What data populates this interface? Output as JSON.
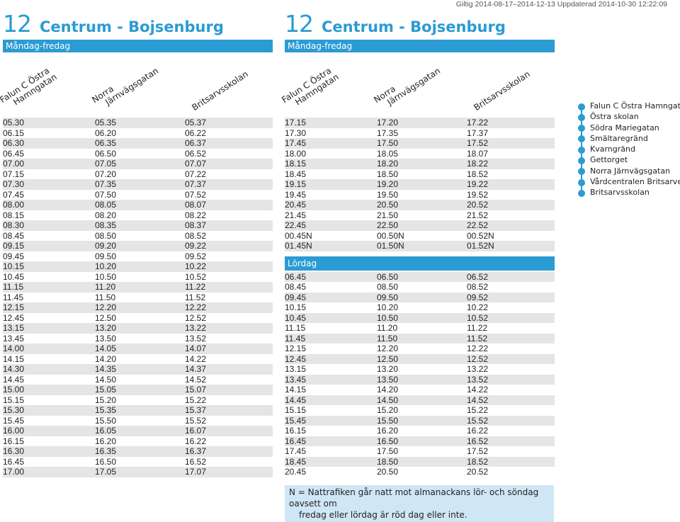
{
  "validity": "Giltig 2014-08-17–2014-12-13 Uppdaterad 2014-10-30 12:22:09",
  "left": {
    "route_number": "12",
    "route_name": "Centrum - Bojsenburg",
    "day": "Måndag-fredag",
    "headers": [
      [
        "Falun C Östra",
        "Hamngatan"
      ],
      [
        "Norra",
        "Järnvägsgatan"
      ],
      [
        "Britsarvsskolan"
      ]
    ],
    "rows": [
      [
        "05.30",
        "05.35",
        "05.37"
      ],
      [
        "06.15",
        "06.20",
        "06.22"
      ],
      [
        "06.30",
        "06.35",
        "06.37"
      ],
      [
        "06.45",
        "06.50",
        "06.52"
      ],
      [
        "07.00",
        "07.05",
        "07.07"
      ],
      [
        "07.15",
        "07.20",
        "07.22"
      ],
      [
        "07.30",
        "07.35",
        "07.37"
      ],
      [
        "07.45",
        "07.50",
        "07.52"
      ],
      [
        "08.00",
        "08.05",
        "08.07"
      ],
      [
        "08.15",
        "08.20",
        "08.22"
      ],
      [
        "08.30",
        "08.35",
        "08.37"
      ],
      [
        "08.45",
        "08.50",
        "08.52"
      ],
      [
        "09.15",
        "09.20",
        "09.22"
      ],
      [
        "09.45",
        "09.50",
        "09.52"
      ],
      [
        "10.15",
        "10.20",
        "10.22"
      ],
      [
        "10.45",
        "10.50",
        "10.52"
      ],
      [
        "11.15",
        "11.20",
        "11.22"
      ],
      [
        "11.45",
        "11.50",
        "11.52"
      ],
      [
        "12.15",
        "12.20",
        "12.22"
      ],
      [
        "12.45",
        "12.50",
        "12.52"
      ],
      [
        "13.15",
        "13.20",
        "13.22"
      ],
      [
        "13.45",
        "13.50",
        "13.52"
      ],
      [
        "14.00",
        "14.05",
        "14.07"
      ],
      [
        "14.15",
        "14.20",
        "14.22"
      ],
      [
        "14.30",
        "14.35",
        "14.37"
      ],
      [
        "14.45",
        "14.50",
        "14.52"
      ],
      [
        "15.00",
        "15.05",
        "15.07"
      ],
      [
        "15.15",
        "15.20",
        "15.22"
      ],
      [
        "15.30",
        "15.35",
        "15.37"
      ],
      [
        "15.45",
        "15.50",
        "15.52"
      ],
      [
        "16.00",
        "16.05",
        "16.07"
      ],
      [
        "16.15",
        "16.20",
        "16.22"
      ],
      [
        "16.30",
        "16.35",
        "16.37"
      ],
      [
        "16.45",
        "16.50",
        "16.52"
      ],
      [
        "17.00",
        "17.05",
        "17.07"
      ]
    ]
  },
  "right": {
    "route_number": "12",
    "route_name": "Centrum - Bojsenburg",
    "day": "Måndag-fredag",
    "headers": [
      [
        "Falun C Östra",
        "Hamngatan"
      ],
      [
        "Norra",
        "Järnvägsgatan"
      ],
      [
        "Britsarvsskolan"
      ]
    ],
    "weekday_rows": [
      [
        "17.15",
        "17.20",
        "17.22"
      ],
      [
        "17.30",
        "17.35",
        "17.37"
      ],
      [
        "17.45",
        "17.50",
        "17.52"
      ],
      [
        "18.00",
        "18.05",
        "18.07"
      ],
      [
        "18.15",
        "18.20",
        "18.22"
      ],
      [
        "18.45",
        "18.50",
        "18.52"
      ],
      [
        "19.15",
        "19.20",
        "19.22"
      ],
      [
        "19.45",
        "19.50",
        "19.52"
      ],
      [
        "20.45",
        "20.50",
        "20.52"
      ],
      [
        "21.45",
        "21.50",
        "21.52"
      ],
      [
        "22.45",
        "22.50",
        "22.52"
      ],
      [
        "00.45N",
        "00.50N",
        "00.52N"
      ],
      [
        "01.45N",
        "01.50N",
        "01.52N"
      ]
    ],
    "saturday_label": "Lördag",
    "saturday_rows": [
      [
        "06.45",
        "06.50",
        "06.52"
      ],
      [
        "08.45",
        "08.50",
        "08.52"
      ],
      [
        "09.45",
        "09.50",
        "09.52"
      ],
      [
        "10.15",
        "10.20",
        "10.22"
      ],
      [
        "10.45",
        "10.50",
        "10.52"
      ],
      [
        "11.15",
        "11.20",
        "11.22"
      ],
      [
        "11.45",
        "11.50",
        "11.52"
      ],
      [
        "12.15",
        "12.20",
        "12.22"
      ],
      [
        "12.45",
        "12.50",
        "12.52"
      ],
      [
        "13.15",
        "13.20",
        "13.22"
      ],
      [
        "13.45",
        "13.50",
        "13.52"
      ],
      [
        "14.15",
        "14.20",
        "14.22"
      ],
      [
        "14.45",
        "14.50",
        "14.52"
      ],
      [
        "15.15",
        "15.20",
        "15.22"
      ],
      [
        "15.45",
        "15.50",
        "15.52"
      ],
      [
        "16.15",
        "16.20",
        "16.22"
      ],
      [
        "16.45",
        "16.50",
        "16.52"
      ],
      [
        "17.45",
        "17.50",
        "17.52"
      ],
      [
        "18.45",
        "18.50",
        "18.52"
      ],
      [
        "20.45",
        "20.50",
        "20.52"
      ]
    ],
    "note_lines": [
      "N = Nattrafiken går natt mot almanackans lör- och söndag oavsett om",
      "fredag eller lördag är röd dag eller inte."
    ]
  },
  "stops": [
    "Falun C Östra Hamngatan",
    "Östra skolan",
    "Södra Mariegatan",
    "Smältaregränd",
    "Kvarngränd",
    "Gettorget",
    "Norra Järnvägsgatan",
    "Vårdcentralen Britsarvet",
    "Britsarvsskolan"
  ],
  "colors": {
    "accent": "#2b9bd3",
    "row_shade": "#e4e5e6",
    "note_bg": "#cfe7f5"
  }
}
